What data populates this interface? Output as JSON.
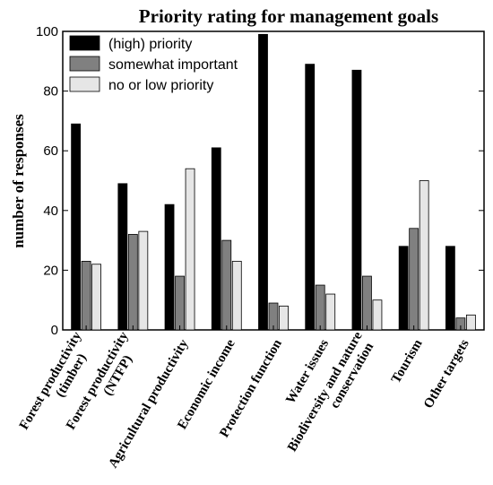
{
  "chart_data": {
    "type": "bar",
    "title": "Priority rating for management goals",
    "xlabel": "",
    "ylabel": "number of responses",
    "ylim": [
      0,
      100
    ],
    "yticks": [
      0,
      20,
      40,
      60,
      80,
      100
    ],
    "grid": false,
    "legend_position": "top-left",
    "categories": [
      [
        "Forest productivity",
        "(timber)"
      ],
      [
        "Forest productivity",
        "(NTFP)"
      ],
      [
        "Agricultural productivity"
      ],
      [
        "Economic income"
      ],
      [
        "Protection function"
      ],
      [
        "Water issues"
      ],
      [
        "Biodiversity and nature",
        "conservation"
      ],
      [
        "Tourism"
      ],
      [
        "Other targets"
      ]
    ],
    "series": [
      {
        "name": "(high) priority",
        "color": "#000000",
        "values": [
          69,
          49,
          42,
          61,
          99,
          89,
          87,
          28,
          28
        ]
      },
      {
        "name": "somewhat important",
        "color": "#808080",
        "values": [
          23,
          32,
          18,
          30,
          9,
          15,
          18,
          34,
          4
        ]
      },
      {
        "name": "no or low priority",
        "color": "#e6e6e6",
        "values": [
          22,
          33,
          54,
          23,
          8,
          12,
          10,
          50,
          5
        ]
      }
    ]
  }
}
